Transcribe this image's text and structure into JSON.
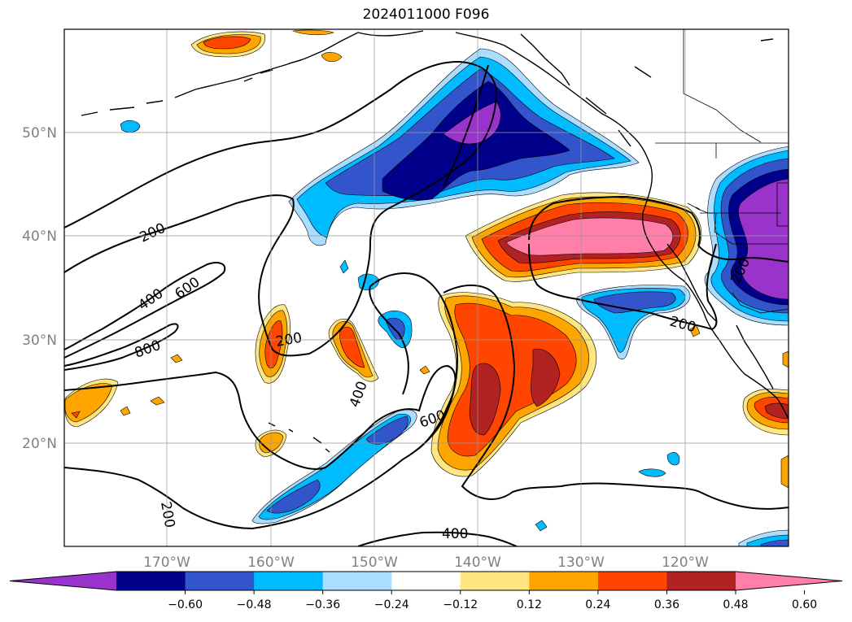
{
  "title": "2024011000 F096",
  "map": {
    "type": "contour-map",
    "region": "North-East Pacific",
    "projection": "plate-carree",
    "lon_range": [
      -180,
      -110
    ],
    "lat_range": [
      10,
      60
    ],
    "grid": true,
    "lat_labels": [
      "50°N",
      "40°N",
      "30°N",
      "20°N"
    ],
    "lon_labels": [
      "170°W",
      "160°W",
      "150°W",
      "140°W",
      "130°W",
      "120°W"
    ],
    "contour_labels": [
      "200",
      "400",
      "600",
      "800",
      "200",
      "400",
      "600",
      "200",
      "200",
      "200",
      "400"
    ]
  },
  "colorbar": {
    "extend": "both",
    "ticks": [
      "−0.60",
      "−0.48",
      "−0.36",
      "−0.24",
      "−0.12",
      "0.12",
      "0.24",
      "0.36",
      "0.48",
      "0.60"
    ],
    "colors": [
      "#9933cc",
      "#00008b",
      "#3355cc",
      "#00bbff",
      "#aaddff",
      "#ffffff",
      "#ffe680",
      "#ffa500",
      "#ff4500",
      "#b22222",
      "#ff7fa8"
    ]
  }
}
